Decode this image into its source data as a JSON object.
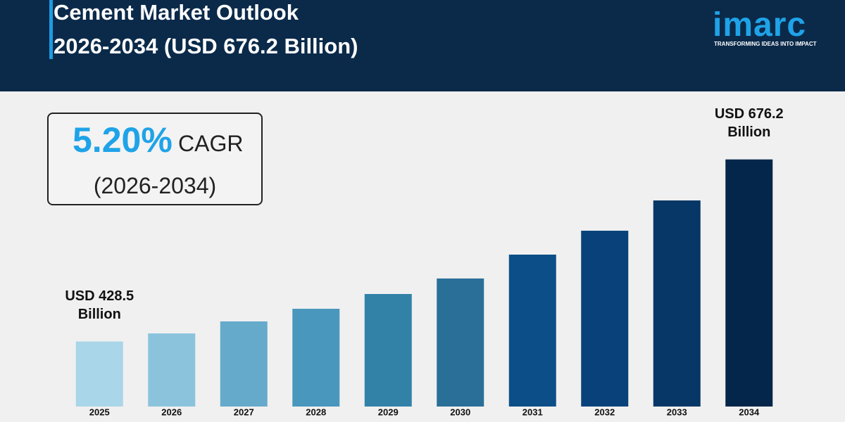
{
  "header": {
    "title_line1": "Cement Market Outlook",
    "title_line2": "2026-2034 (USD 676.2 Billion)",
    "logo": "imarc",
    "tagline": "TRANSFORMING IDEAS INTO IMPACT"
  },
  "chart_data": {
    "type": "bar",
    "cagr_value": "5.20%",
    "cagr_label": "CAGR",
    "cagr_period": "(2026-2034)",
    "categories": [
      "2025",
      "2026",
      "2027",
      "2028",
      "2029",
      "2030",
      "2031",
      "2032",
      "2033",
      "2034"
    ],
    "values": [
      428.5,
      439.5,
      455.8,
      473,
      493.1,
      514.2,
      546.7,
      579.2,
      620.4,
      676.2
    ],
    "value_labels": [
      "USD 428.5 Billion",
      null,
      null,
      null,
      null,
      null,
      null,
      null,
      null,
      "USD 676.2 Billion"
    ],
    "colors": [
      "#a9d6e8",
      "#8cc3dc",
      "#66aacb",
      "#4a97bd",
      "#3282a8",
      "#2a6f98",
      "#0c4e88",
      "#09427a",
      "#063766",
      "#03264a"
    ],
    "ylim": [
      340,
      740
    ]
  }
}
